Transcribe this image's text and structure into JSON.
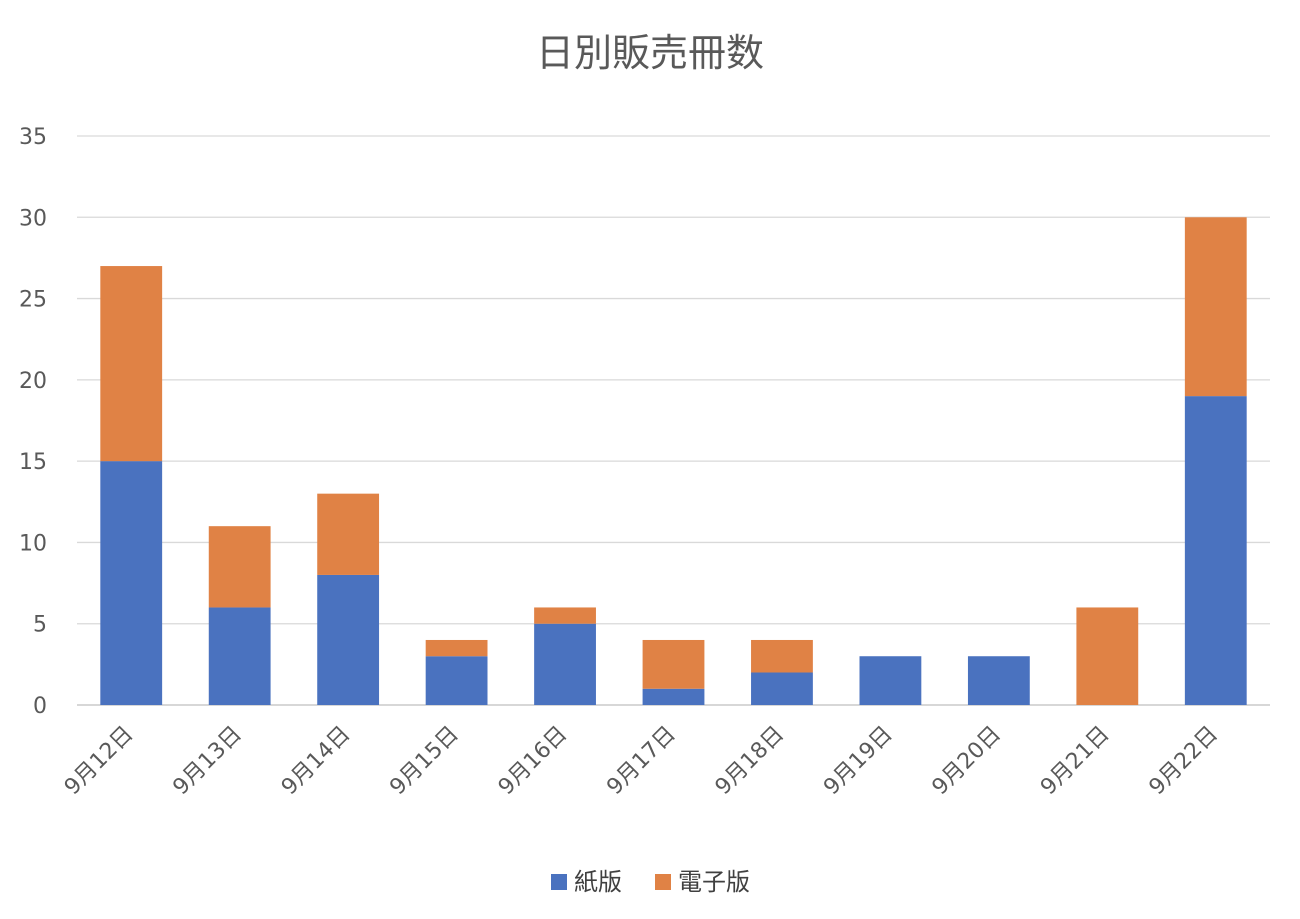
{
  "chart_data": {
    "type": "bar",
    "stacked": true,
    "title": "日別販売冊数",
    "categories": [
      "9月12日",
      "9月13日",
      "9月14日",
      "9月15日",
      "9月16日",
      "9月17日",
      "9月18日",
      "9月19日",
      "9月20日",
      "9月21日",
      "9月22日"
    ],
    "series": [
      {
        "name": "紙版",
        "color": "#4a72bf",
        "values": [
          15,
          6,
          8,
          3,
          5,
          1,
          2,
          3,
          3,
          0,
          19
        ]
      },
      {
        "name": "電子版",
        "color": "#e08245",
        "values": [
          12,
          5,
          5,
          1,
          1,
          3,
          2,
          0,
          0,
          6,
          11
        ]
      }
    ],
    "ylim": [
      0,
      35
    ],
    "yticks": [
      "0",
      "5",
      "10",
      "15",
      "20",
      "25",
      "30",
      "35"
    ],
    "grid": true,
    "legend_position": "bottom"
  }
}
